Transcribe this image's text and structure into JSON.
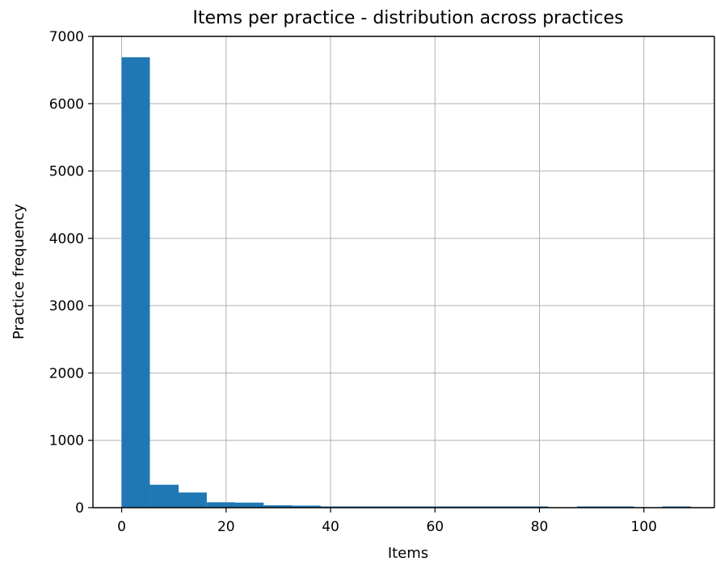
{
  "chart_data": {
    "type": "bar",
    "subtype": "histogram",
    "title": "Items per practice - distribution across practices",
    "xlabel": "Items",
    "ylabel": "Practice frequency",
    "xlim": [
      -5.5,
      113.5
    ],
    "ylim": [
      0,
      7000
    ],
    "xticks": [
      0,
      20,
      40,
      60,
      80,
      100
    ],
    "yticks": [
      0,
      1000,
      2000,
      3000,
      4000,
      5000,
      6000,
      7000
    ],
    "grid": true,
    "bar_color": "#1f77b4",
    "bins": [
      {
        "x0": 0,
        "x1": 5.4,
        "value": 6690
      },
      {
        "x0": 5.4,
        "x1": 10.9,
        "value": 340
      },
      {
        "x0": 10.9,
        "x1": 16.3,
        "value": 225
      },
      {
        "x0": 16.3,
        "x1": 21.8,
        "value": 80
      },
      {
        "x0": 21.8,
        "x1": 27.2,
        "value": 75
      },
      {
        "x0": 27.2,
        "x1": 32.7,
        "value": 35
      },
      {
        "x0": 32.7,
        "x1": 38.1,
        "value": 30
      },
      {
        "x0": 38.1,
        "x1": 43.6,
        "value": 15
      },
      {
        "x0": 43.6,
        "x1": 49.0,
        "value": 12
      },
      {
        "x0": 49.0,
        "x1": 54.5,
        "value": 10
      },
      {
        "x0": 54.5,
        "x1": 59.9,
        "value": 8
      },
      {
        "x0": 59.9,
        "x1": 65.4,
        "value": 6
      },
      {
        "x0": 65.4,
        "x1": 70.8,
        "value": 5
      },
      {
        "x0": 70.8,
        "x1": 76.3,
        "value": 5
      },
      {
        "x0": 76.3,
        "x1": 81.7,
        "value": 4
      },
      {
        "x0": 81.7,
        "x1": 87.2,
        "value": 0
      },
      {
        "x0": 87.2,
        "x1": 92.6,
        "value": 10
      },
      {
        "x0": 92.6,
        "x1": 98.1,
        "value": 8
      },
      {
        "x0": 98.1,
        "x1": 103.5,
        "value": 0
      },
      {
        "x0": 103.5,
        "x1": 109.0,
        "value": 1
      }
    ]
  }
}
